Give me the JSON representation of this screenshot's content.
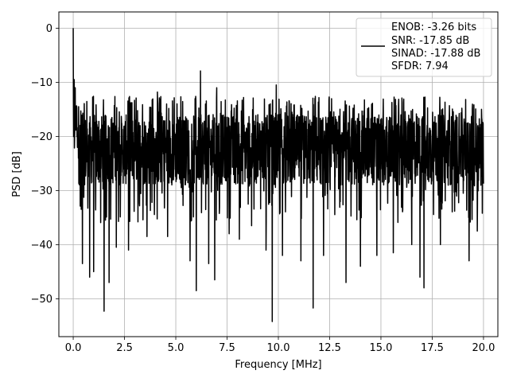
{
  "chart_data": {
    "type": "line",
    "xlabel": "Frequency [MHz]",
    "ylabel": "PSD [dB]",
    "xlim": [
      -0.7,
      20.7
    ],
    "ylim": [
      -57,
      3
    ],
    "xticks": [
      0.0,
      2.5,
      5.0,
      7.5,
      10.0,
      12.5,
      15.0,
      17.5,
      20.0
    ],
    "xtick_labels": [
      "0.0",
      "2.5",
      "5.0",
      "7.5",
      "10.0",
      "12.5",
      "15.0",
      "17.5",
      "20.0"
    ],
    "yticks": [
      0,
      -10,
      -20,
      -30,
      -40,
      -50
    ],
    "ytick_labels": [
      "0",
      "−10",
      "−20",
      "−30",
      "−40",
      "−50"
    ],
    "grid": true,
    "legend_position": "top-right",
    "legend_entries": [
      "ENOB: -3.26 bits",
      "SNR: -17.85 dB",
      "SINAD: -17.88 dB",
      "SFDR: 7.94"
    ],
    "series_color": "#000000",
    "series": [
      {
        "x_start": 0.0,
        "x_end": 20.0,
        "n_points": 2048,
        "noise_band_upper_typical": -16,
        "noise_band_lower_typical": -29,
        "peaks": [
          {
            "x": 0.0,
            "y": 0.0
          },
          {
            "x": 0.05,
            "y": -9.5
          },
          {
            "x": 0.1,
            "y": -11.0
          },
          {
            "x": 6.2,
            "y": -7.9
          },
          {
            "x": 4.1,
            "y": -11.8
          },
          {
            "x": 7.0,
            "y": -11.0
          },
          {
            "x": 9.9,
            "y": -10.5
          },
          {
            "x": 16.5,
            "y": -10.5
          },
          {
            "x": 19.9,
            "y": -15.0
          }
        ],
        "dips": [
          {
            "x": 0.45,
            "y": -43.5
          },
          {
            "x": 0.8,
            "y": -46.0
          },
          {
            "x": 1.0,
            "y": -45.0
          },
          {
            "x": 1.5,
            "y": -52.3
          },
          {
            "x": 1.75,
            "y": -47.0
          },
          {
            "x": 2.1,
            "y": -40.5
          },
          {
            "x": 2.7,
            "y": -41.0
          },
          {
            "x": 3.6,
            "y": -38.5
          },
          {
            "x": 4.6,
            "y": -38.5
          },
          {
            "x": 5.7,
            "y": -43.0
          },
          {
            "x": 6.0,
            "y": -48.5
          },
          {
            "x": 6.6,
            "y": -43.5
          },
          {
            "x": 6.9,
            "y": -46.5
          },
          {
            "x": 7.6,
            "y": -38.0
          },
          {
            "x": 8.1,
            "y": -39.0
          },
          {
            "x": 8.7,
            "y": -36.5
          },
          {
            "x": 9.4,
            "y": -41.0
          },
          {
            "x": 9.7,
            "y": -54.2
          },
          {
            "x": 10.2,
            "y": -42.0
          },
          {
            "x": 11.1,
            "y": -43.0
          },
          {
            "x": 11.7,
            "y": -51.7
          },
          {
            "x": 12.2,
            "y": -42.0
          },
          {
            "x": 13.3,
            "y": -47.0
          },
          {
            "x": 14.0,
            "y": -44.0
          },
          {
            "x": 14.8,
            "y": -42.0
          },
          {
            "x": 15.6,
            "y": -41.5
          },
          {
            "x": 16.5,
            "y": -40.0
          },
          {
            "x": 16.9,
            "y": -46.0
          },
          {
            "x": 17.1,
            "y": -48.0
          },
          {
            "x": 17.9,
            "y": -40.0
          },
          {
            "x": 19.3,
            "y": -43.0
          },
          {
            "x": 19.7,
            "y": -37.5
          }
        ]
      }
    ]
  }
}
